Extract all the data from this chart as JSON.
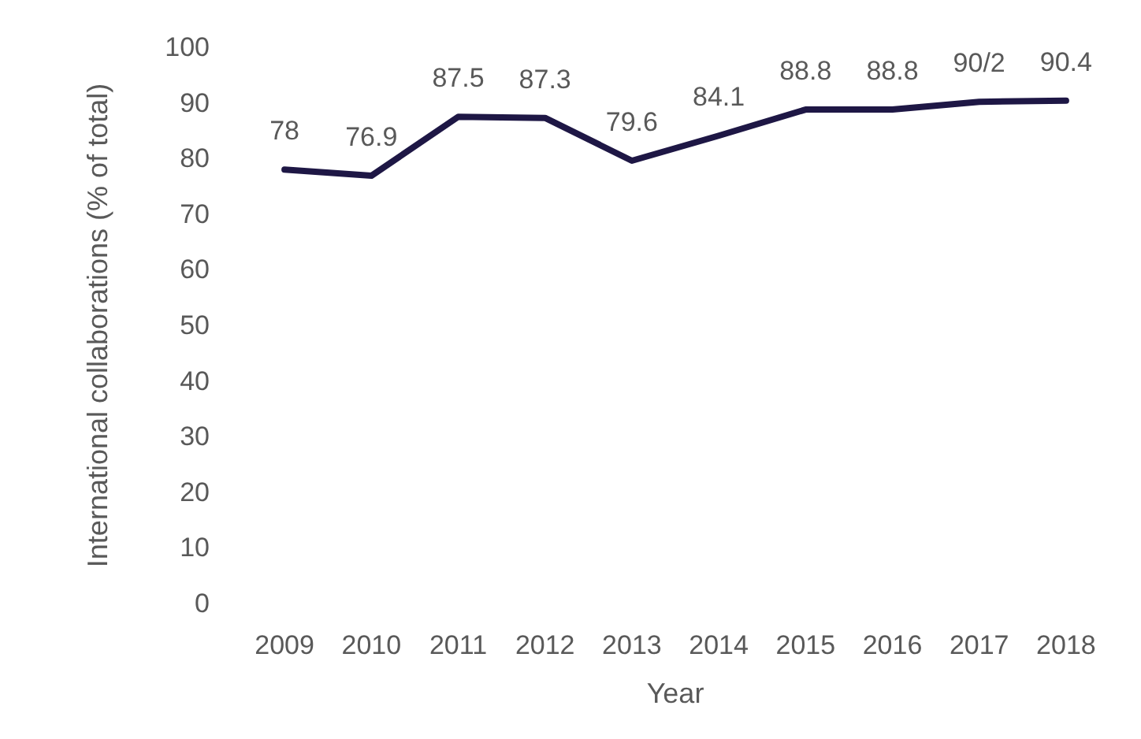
{
  "chart_data": {
    "type": "line",
    "xlabel": "Year",
    "ylabel": "International collaborations (% of total)",
    "categories": [
      "2009",
      "2010",
      "2011",
      "2012",
      "2013",
      "2014",
      "2015",
      "2016",
      "2017",
      "2018"
    ],
    "series": [
      {
        "color": "#1e1745",
        "values": [
          78,
          76.9,
          87.5,
          87.3,
          79.6,
          84.1,
          88.8,
          88.8,
          90.2,
          90.4
        ],
        "value_labels": [
          "78",
          "76.9",
          "87.5",
          "87.3",
          "79.6",
          "84.1",
          "88.8",
          "88.8",
          "90/2",
          "90.4"
        ]
      }
    ],
    "ylim": [
      0,
      100
    ],
    "yticks": [
      0,
      10,
      20,
      30,
      40,
      50,
      60,
      70,
      80,
      90,
      100
    ],
    "grid": false,
    "marker": "none",
    "line_style": "solid"
  }
}
